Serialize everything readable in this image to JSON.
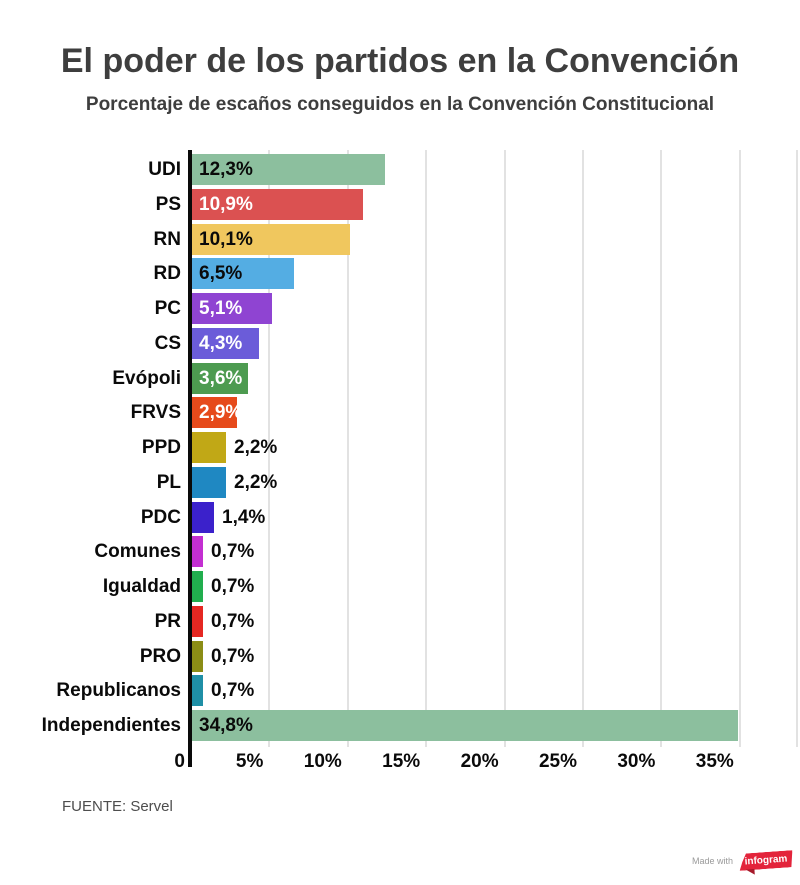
{
  "header": {
    "title": "El poder de los partidos en la Convención",
    "subtitle": "Porcentaje de escaños conseguidos en la Convención Constitucional"
  },
  "footer": {
    "source": "FUENTE: Servel"
  },
  "attribution": {
    "made_with": "Made with",
    "brand": "infogram",
    "brand_color": "#e3243b"
  },
  "chart_data": {
    "type": "bar",
    "orientation": "horizontal",
    "title": "El poder de los partidos en la Convención",
    "subtitle": "Porcentaje de escaños conseguidos en la Convención Constitucional",
    "categories": [
      "UDI",
      "PS",
      "RN",
      "RD",
      "PC",
      "CS",
      "Evópoli",
      "FRVS",
      "PPD",
      "PL",
      "PDC",
      "Comunes",
      "Igualdad",
      "PR",
      "PRO",
      "Republicanos",
      "Independientes"
    ],
    "values": [
      12.3,
      10.9,
      10.1,
      6.5,
      5.1,
      4.3,
      3.6,
      2.9,
      2.2,
      2.2,
      1.4,
      0.7,
      0.7,
      0.7,
      0.7,
      0.7,
      34.8
    ],
    "value_labels": [
      "12,3%",
      "10,9%",
      "10,1%",
      "6,5%",
      "5,1%",
      "4,3%",
      "3,6%",
      "2,9%",
      "2,2%",
      "2,2%",
      "1,4%",
      "0,7%",
      "0,7%",
      "0,7%",
      "0,7%",
      "0,7%",
      "34,8%"
    ],
    "colors": [
      "#8cbf9e",
      "#db5151",
      "#f0c75e",
      "#54ade3",
      "#8f44d2",
      "#6b5cd9",
      "#4d9b50",
      "#e64a1b",
      "#c1a816",
      "#1f88c2",
      "#3b21cb",
      "#c32fd1",
      "#21ae4e",
      "#e52722",
      "#8b8d16",
      "#1f8fa6",
      "#8cbf9e"
    ],
    "label_inside": [
      true,
      true,
      true,
      true,
      true,
      true,
      true,
      true,
      false,
      false,
      false,
      false,
      false,
      false,
      false,
      false,
      true
    ],
    "label_text_colors": [
      "#0a0a0a",
      "#ffffff",
      "#0a0a0a",
      "#0a0a0a",
      "#ffffff",
      "#ffffff",
      "#ffffff",
      "#ffffff",
      "#0a0a0a",
      "#0a0a0a",
      "#0a0a0a",
      "#0a0a0a",
      "#0a0a0a",
      "#0a0a0a",
      "#0a0a0a",
      "#0a0a0a",
      "#0a0a0a"
    ],
    "x_ticks": [
      "0",
      "5%",
      "10%",
      "15%",
      "20%",
      "25%",
      "30%",
      "35%"
    ],
    "x_tick_values": [
      0,
      5,
      10,
      15,
      20,
      25,
      30,
      35
    ],
    "xlim": [
      0,
      38.65
    ],
    "grid": true,
    "gridline_color": "#e2e2e2",
    "source": "FUENTE: Servel"
  }
}
